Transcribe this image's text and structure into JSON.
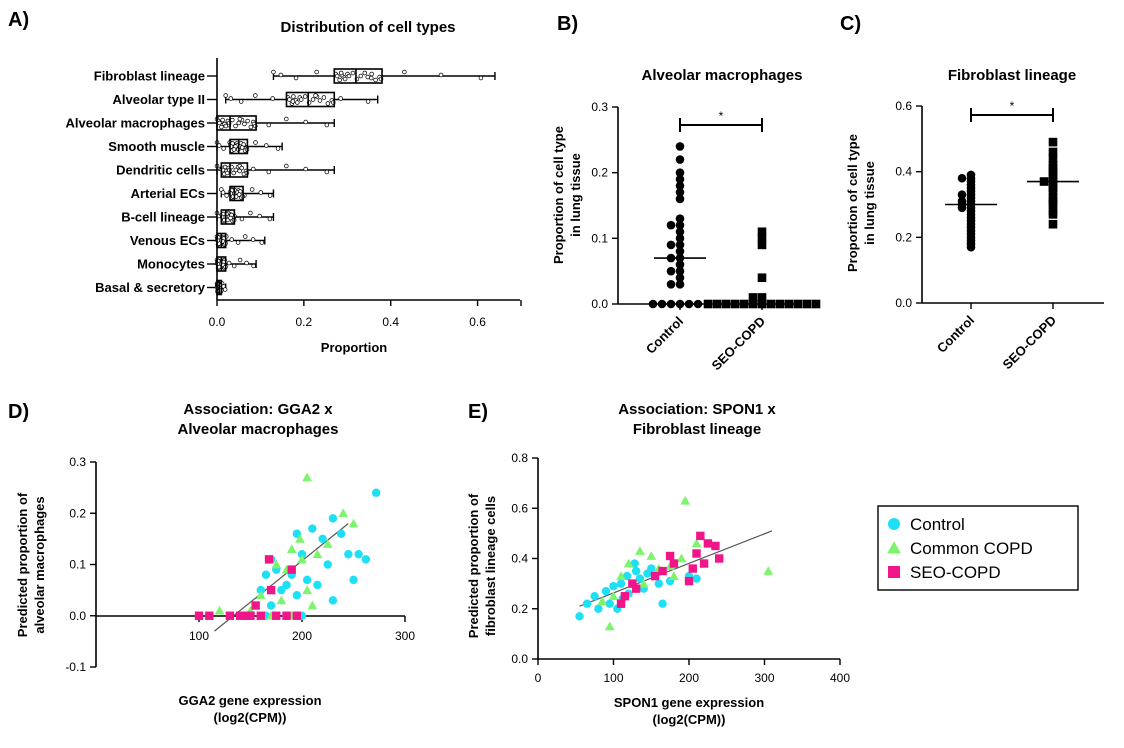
{
  "colors": {
    "control": "#1ee0f5",
    "common_copd": "#7cf46c",
    "seo_copd": "#f0168a",
    "ink": "#000000"
  },
  "chart_data": [
    {
      "id": "A",
      "panel_label": "A)",
      "type": "boxplot",
      "title": "Distribution of cell types",
      "xlabel": "Proportion",
      "ylabel": "",
      "xlim": [
        0,
        0.7
      ],
      "xticks": [
        "0.0",
        "0.2",
        "0.4",
        "0.6"
      ],
      "categories": [
        "Fibroblast lineage",
        "Alveolar type II",
        "Alveolar macrophages",
        "Smooth muscle",
        "Dendritic cells",
        "Arterial ECs",
        "B-cell lineage",
        "Venous ECs",
        "Monocytes",
        "Basal & secretory"
      ],
      "boxes": [
        {
          "min": 0.13,
          "q1": 0.27,
          "median": 0.32,
          "q3": 0.38,
          "max": 0.64
        },
        {
          "min": 0.02,
          "q1": 0.16,
          "median": 0.21,
          "q3": 0.27,
          "max": 0.37
        },
        {
          "min": 0.0,
          "q1": 0.0,
          "median": 0.03,
          "q3": 0.09,
          "max": 0.27
        },
        {
          "min": 0.0,
          "q1": 0.03,
          "median": 0.05,
          "q3": 0.07,
          "max": 0.15
        },
        {
          "min": 0.0,
          "q1": 0.01,
          "median": 0.03,
          "q3": 0.07,
          "max": 0.27
        },
        {
          "min": 0.01,
          "q1": 0.03,
          "median": 0.04,
          "q3": 0.06,
          "max": 0.13
        },
        {
          "min": 0.0,
          "q1": 0.01,
          "median": 0.02,
          "q3": 0.04,
          "max": 0.13
        },
        {
          "min": 0.0,
          "q1": 0.0,
          "median": 0.01,
          "q3": 0.02,
          "max": 0.11
        },
        {
          "min": 0.0,
          "q1": 0.0,
          "median": 0.01,
          "q3": 0.02,
          "max": 0.09
        },
        {
          "min": 0.0,
          "q1": 0.0,
          "median": 0.005,
          "q3": 0.01,
          "max": 0.02
        }
      ]
    },
    {
      "id": "B",
      "panel_label": "B)",
      "type": "scatter",
      "title": "Alveolar macrophages",
      "ylabel_lines": [
        "Proportion of cell type",
        "in lung tissue"
      ],
      "ylim": [
        0,
        0.3
      ],
      "yticks": [
        "0.0",
        "0.1",
        "0.2",
        "0.3"
      ],
      "categories": [
        "Control",
        "SEO-COPD"
      ],
      "significance": "*",
      "series": [
        {
          "values": [
            0.24,
            0.22,
            0.2,
            0.19,
            0.18,
            0.17,
            0.16,
            0.13,
            0.12,
            0.12,
            0.11,
            0.1,
            0.09,
            0.09,
            0.08,
            0.07,
            0.07,
            0.06,
            0.05,
            0.05,
            0.04,
            0.03,
            0.03,
            0.0,
            0.0,
            0.0,
            0.0,
            0.0,
            0.0
          ],
          "median": 0.07
        },
        {
          "values": [
            0.11,
            0.1,
            0.09,
            0.04,
            0.01,
            0.01,
            0.0,
            0.0,
            0.0,
            0.0,
            0.0,
            0.0,
            0.0,
            0.0,
            0.0,
            0.0,
            0.0,
            0.0,
            0.0
          ],
          "median": 0.0
        }
      ]
    },
    {
      "id": "C",
      "panel_label": "C)",
      "type": "scatter",
      "title": "Fibroblast lineage",
      "ylabel_lines": [
        "Proportion of cell type",
        "in lung tissue"
      ],
      "ylim": [
        0,
        0.6
      ],
      "yticks": [
        "0.0",
        "0.2",
        "0.4",
        "0.6"
      ],
      "categories": [
        "Control",
        "SEO-COPD"
      ],
      "significance": "*",
      "series": [
        {
          "values": [
            0.39,
            0.38,
            0.38,
            0.37,
            0.36,
            0.35,
            0.34,
            0.33,
            0.33,
            0.32,
            0.31,
            0.31,
            0.3,
            0.3,
            0.29,
            0.29,
            0.28,
            0.27,
            0.26,
            0.25,
            0.24,
            0.23,
            0.22,
            0.21,
            0.2,
            0.19,
            0.18,
            0.17
          ],
          "median": 0.3
        },
        {
          "values": [
            0.49,
            0.46,
            0.44,
            0.42,
            0.41,
            0.4,
            0.39,
            0.38,
            0.37,
            0.37,
            0.36,
            0.35,
            0.34,
            0.32,
            0.31,
            0.3,
            0.28,
            0.27,
            0.24
          ],
          "median": 0.37
        }
      ]
    },
    {
      "id": "D",
      "panel_label": "D)",
      "type": "scatter",
      "title_lines": [
        "Association: GGA2 x",
        "Alveolar macrophages"
      ],
      "xlabel_lines": [
        "GGA2 gene expression",
        "(log2(CPM))"
      ],
      "ylabel_lines": [
        "Predicted proportion of",
        "alveolar macrophages"
      ],
      "xlim": [
        0,
        300
      ],
      "ylim": [
        -0.1,
        0.3
      ],
      "xticks": [
        "100",
        "200",
        "300"
      ],
      "yticks": [
        "0.3",
        "0.2",
        "0.1",
        "0.0",
        "-0.1"
      ],
      "trendline": {
        "x": [
          115,
          245
        ],
        "y": [
          -0.03,
          0.18
        ]
      },
      "series": [
        {
          "group": "control",
          "points": [
            [
              272,
              0.24
            ],
            [
              230,
              0.19
            ],
            [
              238,
              0.16
            ],
            [
              195,
              0.16
            ],
            [
              210,
              0.17
            ],
            [
              220,
              0.15
            ],
            [
              245,
              0.12
            ],
            [
              255,
              0.12
            ],
            [
              262,
              0.11
            ],
            [
              225,
              0.1
            ],
            [
              200,
              0.12
            ],
            [
              170,
              0.11
            ],
            [
              175,
              0.09
            ],
            [
              190,
              0.08
            ],
            [
              250,
              0.07
            ],
            [
              205,
              0.07
            ],
            [
              215,
              0.06
            ],
            [
              185,
              0.06
            ],
            [
              165,
              0.08
            ],
            [
              160,
              0.05
            ],
            [
              180,
              0.05
            ],
            [
              195,
              0.04
            ],
            [
              170,
              0.02
            ],
            [
              230,
              0.03
            ],
            [
              165,
              0.0
            ],
            [
              185,
              0.0
            ],
            [
              200,
              0.0
            ]
          ]
        },
        {
          "group": "common",
          "points": [
            [
              205,
              0.27
            ],
            [
              250,
              0.18
            ],
            [
              240,
              0.2
            ],
            [
              198,
              0.15
            ],
            [
              225,
              0.14
            ],
            [
              190,
              0.13
            ],
            [
              215,
              0.12
            ],
            [
              200,
              0.11
            ],
            [
              175,
              0.1
            ],
            [
              185,
              0.09
            ],
            [
              205,
              0.05
            ],
            [
              160,
              0.04
            ],
            [
              180,
              0.03
            ],
            [
              210,
              0.02
            ],
            [
              120,
              0.01
            ],
            [
              150,
              0.01
            ],
            [
              170,
              0.0
            ],
            [
              190,
              0.0
            ]
          ]
        },
        {
          "group": "seo",
          "points": [
            [
              168,
              0.11
            ],
            [
              190,
              0.09
            ],
            [
              170,
              0.05
            ],
            [
              155,
              0.02
            ],
            [
              110,
              0.0
            ],
            [
              100,
              0.0
            ],
            [
              130,
              0.0
            ],
            [
              145,
              0.0
            ],
            [
              150,
              0.0
            ],
            [
              160,
              0.0
            ],
            [
              175,
              0.0
            ],
            [
              185,
              0.0
            ],
            [
              195,
              0.0
            ],
            [
              140,
              0.0
            ]
          ]
        }
      ]
    },
    {
      "id": "E",
      "panel_label": "E)",
      "type": "scatter",
      "title_lines": [
        "Association: SPON1 x",
        "Fibroblast lineage"
      ],
      "xlabel_lines": [
        "SPON1 gene expression",
        "(log2(CPM))"
      ],
      "ylabel_lines": [
        "Predicted proportion of",
        "fibroblast lineage cells"
      ],
      "xlim": [
        0,
        400
      ],
      "ylim": [
        0,
        0.8
      ],
      "xticks": [
        "0",
        "100",
        "200",
        "300",
        "400"
      ],
      "yticks": [
        "0.0",
        "0.2",
        "0.4",
        "0.6",
        "0.8"
      ],
      "trendline": {
        "x": [
          55,
          310
        ],
        "y": [
          0.21,
          0.51
        ]
      },
      "series": [
        {
          "group": "control",
          "points": [
            [
              55,
              0.17
            ],
            [
              65,
              0.22
            ],
            [
              75,
              0.25
            ],
            [
              80,
              0.2
            ],
            [
              90,
              0.27
            ],
            [
              95,
              0.22
            ],
            [
              100,
              0.29
            ],
            [
              105,
              0.2
            ],
            [
              110,
              0.3
            ],
            [
              112,
              0.24
            ],
            [
              118,
              0.33
            ],
            [
              120,
              0.26
            ],
            [
              125,
              0.3
            ],
            [
              128,
              0.38
            ],
            [
              130,
              0.35
            ],
            [
              135,
              0.32
            ],
            [
              140,
              0.28
            ],
            [
              145,
              0.34
            ],
            [
              150,
              0.36
            ],
            [
              160,
              0.3
            ],
            [
              165,
              0.22
            ],
            [
              175,
              0.31
            ],
            [
              200,
              0.33
            ],
            [
              210,
              0.32
            ]
          ]
        },
        {
          "group": "common",
          "points": [
            [
              195,
              0.63
            ],
            [
              305,
              0.35
            ],
            [
              210,
              0.46
            ],
            [
              190,
              0.4
            ],
            [
              175,
              0.37
            ],
            [
              165,
              0.35
            ],
            [
              150,
              0.41
            ],
            [
              135,
              0.43
            ],
            [
              120,
              0.38
            ],
            [
              110,
              0.33
            ],
            [
              100,
              0.25
            ],
            [
              85,
              0.23
            ],
            [
              95,
              0.13
            ],
            [
              140,
              0.3
            ],
            [
              160,
              0.36
            ],
            [
              180,
              0.33
            ]
          ]
        },
        {
          "group": "seo",
          "points": [
            [
              215,
              0.49
            ],
            [
              225,
              0.46
            ],
            [
              210,
              0.42
            ],
            [
              235,
              0.45
            ],
            [
              240,
              0.4
            ],
            [
              220,
              0.38
            ],
            [
              205,
              0.36
            ],
            [
              175,
              0.41
            ],
            [
              180,
              0.38
            ],
            [
              165,
              0.35
            ],
            [
              155,
              0.33
            ],
            [
              125,
              0.3
            ],
            [
              115,
              0.25
            ],
            [
              110,
              0.22
            ],
            [
              200,
              0.31
            ],
            [
              130,
              0.28
            ]
          ]
        }
      ]
    }
  ],
  "legend": [
    {
      "group": "control",
      "label": "Control",
      "marker": "circle"
    },
    {
      "group": "common",
      "label": "Common COPD",
      "marker": "triangle"
    },
    {
      "group": "seo",
      "label": "SEO-COPD",
      "marker": "square"
    }
  ]
}
